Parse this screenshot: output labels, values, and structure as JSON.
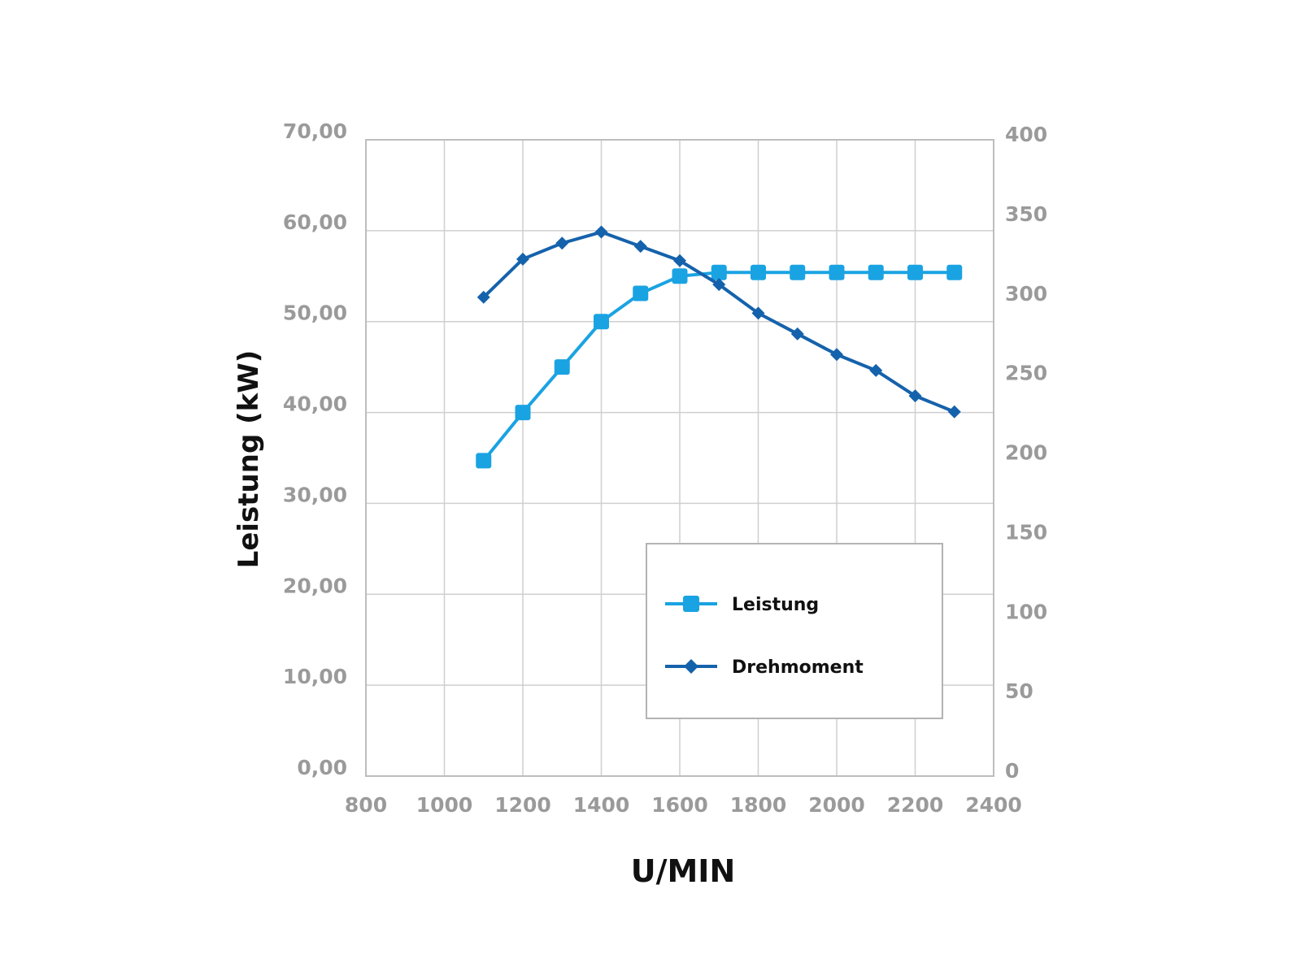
{
  "chart_data": {
    "type": "line",
    "xlabel": "U/MIN",
    "ylabel_left": "Leistung (kW)",
    "ylabel_right": "",
    "xlim": [
      800,
      2400
    ],
    "ylim_left": [
      0,
      70
    ],
    "ylim_right": [
      0,
      400
    ],
    "x_ticks": [
      "800",
      "1000",
      "1200",
      "1400",
      "1600",
      "1800",
      "2000",
      "2200",
      "2400"
    ],
    "y_left_ticks": [
      "0,00",
      "10,00",
      "20,00",
      "30,00",
      "40,00",
      "50,00",
      "60,00",
      "70,00"
    ],
    "y_right_ticks": [
      "0",
      "50",
      "100",
      "150",
      "200",
      "250",
      "300",
      "350",
      "400"
    ],
    "grid": true,
    "legend_position": "bottom-right",
    "series": [
      {
        "name": "Leistung",
        "axis": "left",
        "marker": "square",
        "color": "#1aa3e2",
        "x": [
          1100,
          1200,
          1300,
          1400,
          1500,
          1600,
          1700,
          1800,
          1900,
          2000,
          2100,
          2200,
          2300
        ],
        "y": [
          34.7,
          40.0,
          45.0,
          50.0,
          53.1,
          55.0,
          55.4,
          55.4,
          55.4,
          55.4,
          55.4,
          55.4,
          55.4
        ]
      },
      {
        "name": "Drehmoment",
        "axis": "right",
        "marker": "diamond",
        "color": "#1562ac",
        "x": [
          1100,
          1200,
          1300,
          1400,
          1500,
          1600,
          1700,
          1800,
          1900,
          2000,
          2100,
          2200,
          2300
        ],
        "y": [
          301,
          325,
          335,
          342,
          333,
          324,
          309,
          291,
          278,
          265,
          255,
          239,
          229
        ]
      }
    ]
  }
}
